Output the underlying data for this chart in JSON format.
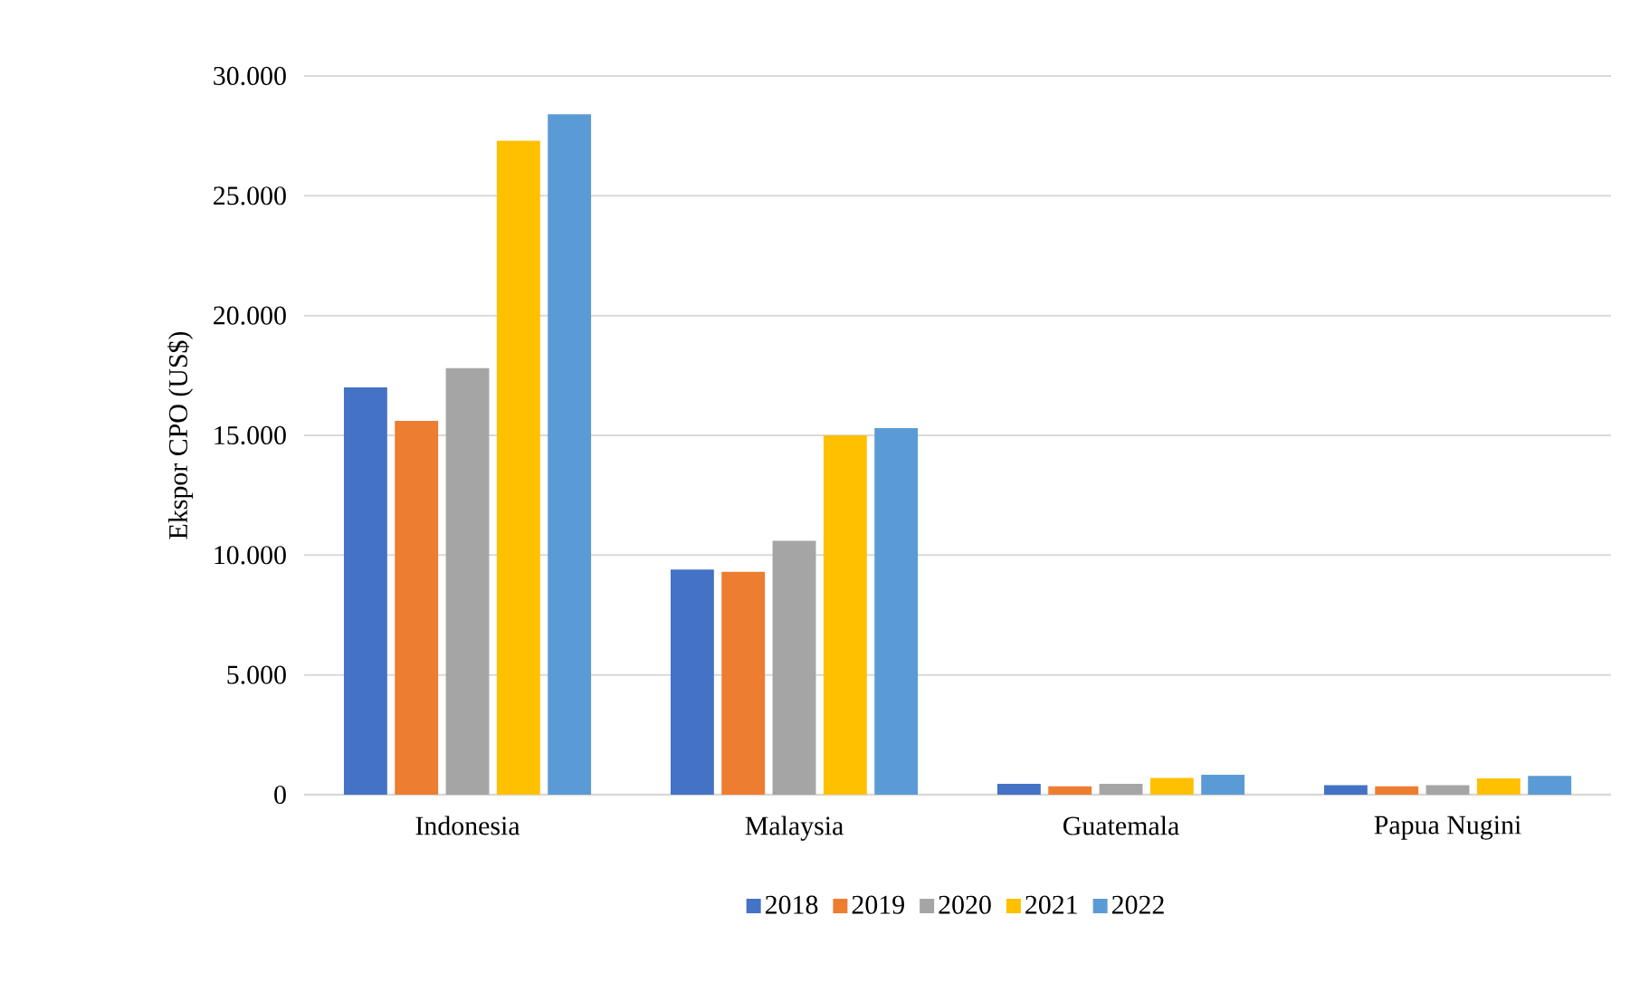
{
  "chart_data": {
    "type": "bar",
    "ylabel": "Ekspor CPO (US$)",
    "categories": [
      "Indonesia",
      "Malaysia",
      "Guatemala",
      "Papua Nugini"
    ],
    "series": [
      {
        "name": "2018",
        "color": "#4472c4",
        "values": [
          17000,
          9400,
          450,
          400
        ]
      },
      {
        "name": "2019",
        "color": "#ed7d31",
        "values": [
          15600,
          9300,
          350,
          350
        ]
      },
      {
        "name": "2020",
        "color": "#a5a5a5",
        "values": [
          17800,
          10600,
          450,
          400
        ]
      },
      {
        "name": "2021",
        "color": "#ffc000",
        "values": [
          27300,
          15000,
          700,
          680
        ]
      },
      {
        "name": "2022",
        "color": "#5b9bd5",
        "values": [
          28400,
          15300,
          830,
          780
        ]
      }
    ],
    "ylim": [
      0,
      30000
    ],
    "yticks": [
      {
        "value": 0,
        "label": "0"
      },
      {
        "value": 5000,
        "label": "5.000"
      },
      {
        "value": 10000,
        "label": "10.000"
      },
      {
        "value": 15000,
        "label": "15.000"
      },
      {
        "value": 20000,
        "label": "20.000"
      },
      {
        "value": 25000,
        "label": "25.000"
      },
      {
        "value": 30000,
        "label": "30.000"
      }
    ],
    "grid": "y",
    "legend": "bottom"
  }
}
